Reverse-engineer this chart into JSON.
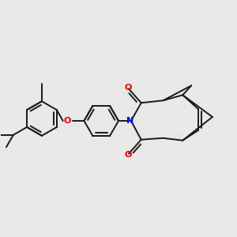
{
  "bg": "#e8e8e8",
  "bond_color": "#1a1a1a",
  "N_color": "#0000ee",
  "O_color": "#ee0000",
  "lw": 1.4,
  "figsize": [
    3.0,
    3.0
  ],
  "dpi": 100,
  "xlim": [
    0,
    300
  ],
  "ylim": [
    0,
    300
  ]
}
